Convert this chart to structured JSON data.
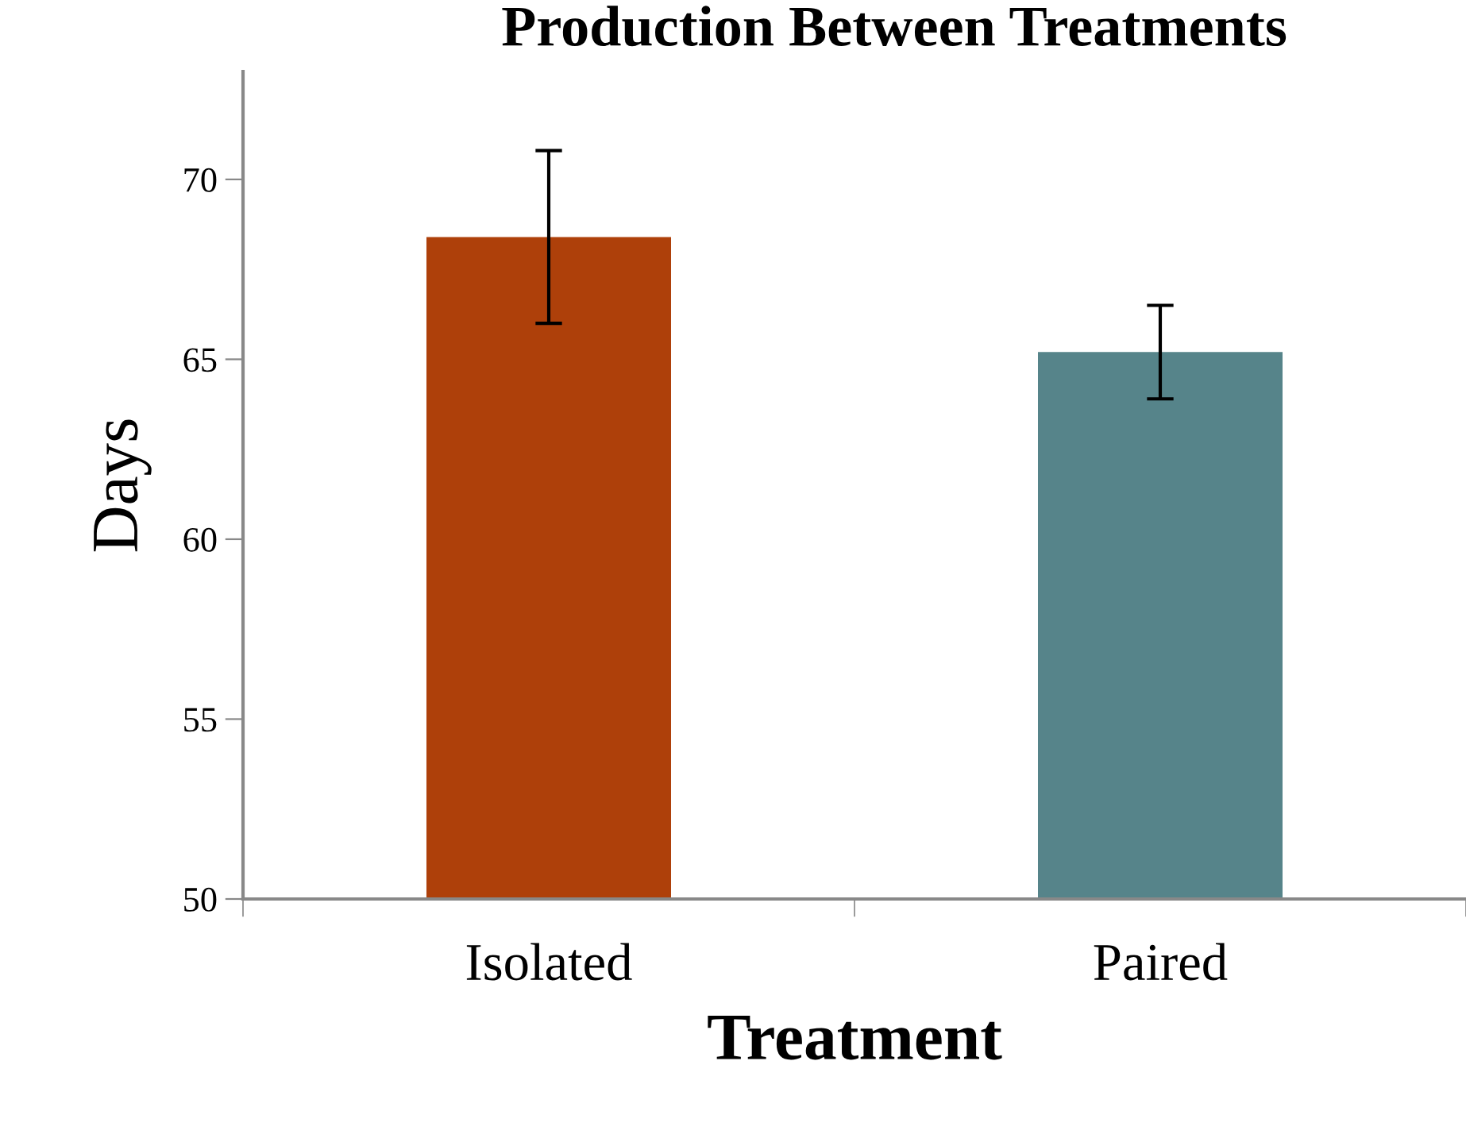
{
  "chart_data": {
    "type": "bar",
    "title": "Production Between Treatments",
    "xlabel": "Treatment",
    "ylabel": "Days",
    "categories": [
      "Isolated",
      "Paired"
    ],
    "values": [
      68.4,
      65.2
    ],
    "colors": [
      "#ae400a",
      "#56848a"
    ],
    "errors": [
      2.4,
      1.3
    ],
    "ylim": [
      50,
      73
    ],
    "yticks": [
      50,
      55,
      60,
      65,
      70
    ],
    "grid": false,
    "legend": false
  }
}
